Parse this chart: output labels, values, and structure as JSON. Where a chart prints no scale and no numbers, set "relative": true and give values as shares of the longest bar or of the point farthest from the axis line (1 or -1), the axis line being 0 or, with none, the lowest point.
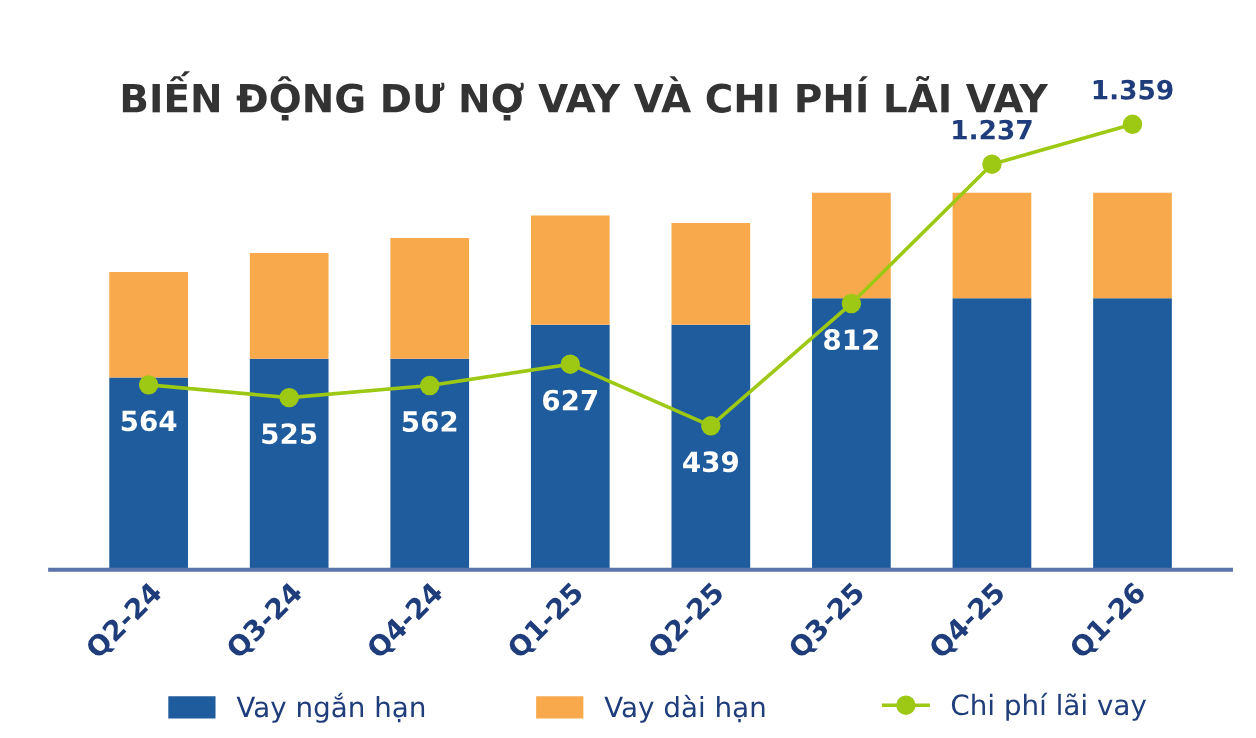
{
  "chart_data": [
    {
      "type": "bar",
      "title": "BIẾN ĐỘNG DƯ NỢ VAY VÀ CHI PHÍ LÃI VAY",
      "categories": [
        "Q2-24",
        "Q3-24",
        "Q4-24",
        "Q1-25",
        "Q2-25",
        "Q3-25",
        "Q4-25",
        "Q1-26"
      ],
      "stacked": true,
      "relative": true,
      "legend": "bottom left",
      "series": [
        {
          "name": "Vay ngắn hạn",
          "color": "#1f5c9e",
          "values": [
            0.51,
            0.56,
            0.56,
            0.65,
            0.65,
            0.72,
            0.72,
            0.72
          ]
        },
        {
          "name": "Vay dài hạn",
          "color": "#f7a94b",
          "values": [
            0.28,
            0.28,
            0.32,
            0.29,
            0.27,
            0.28,
            0.28,
            0.28
          ]
        }
      ]
    },
    {
      "type": "line",
      "categories": [
        null,
        null,
        null,
        null,
        null,
        null,
        null,
        null
      ],
      "legend": "bottom right",
      "tick_labels": false,
      "marker": "circle",
      "line_style": "solid",
      "series": [
        {
          "name": "Chi phí lãi vay",
          "color": "#9dc813",
          "values": [
            564,
            525,
            562,
            627,
            439,
            812,
            1237,
            1359
          ],
          "value_labels": [
            "564",
            "525",
            "562",
            "627",
            "439",
            "812",
            "1.237",
            "1.359"
          ]
        }
      ]
    }
  ]
}
